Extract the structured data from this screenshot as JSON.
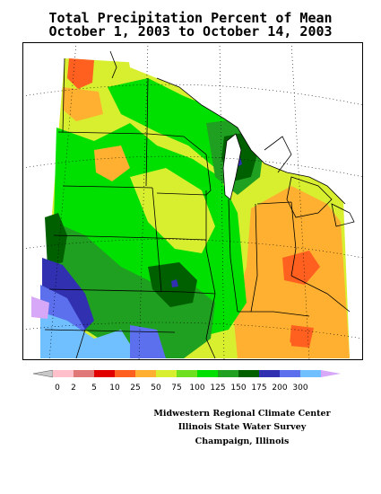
{
  "title": {
    "line1": "Total Precipitation Percent of Mean",
    "line2": "October 1, 2003 to October 14, 2003"
  },
  "legend": {
    "colors": [
      "#c8c8c8",
      "#ffc0cb",
      "#e07878",
      "#e00000",
      "#ff5f1f",
      "#ffb030",
      "#d8ef30",
      "#6fe020",
      "#00e000",
      "#20a020",
      "#006000",
      "#3030b0",
      "#5c70ee",
      "#70c0ff",
      "#d8a8f8"
    ],
    "labels": [
      "0",
      "2",
      "5",
      "10",
      "25",
      "50",
      "75",
      "100",
      "125",
      "150",
      "175",
      "200",
      "300"
    ]
  },
  "credits": {
    "line1": "Midwestern Regional Climate Center",
    "line2": "Illinois State Water Survey",
    "line3": "Champaign, Illinois"
  },
  "map_colors": {
    "lightgreen": "#d8ef30",
    "green": "#00e000",
    "midgreen": "#20a020",
    "darkgreen": "#006000",
    "orange": "#ffb030",
    "redorange": "#ff5f1f",
    "blue": "#3030b0",
    "medblue": "#5c70ee",
    "lightblue": "#70c0ff",
    "purple": "#d8a8f8"
  }
}
